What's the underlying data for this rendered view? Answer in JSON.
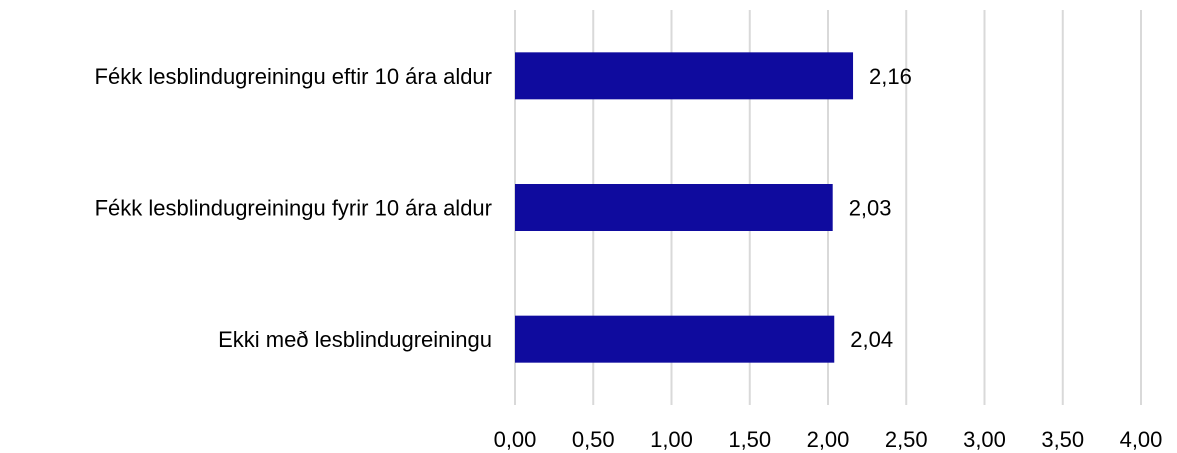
{
  "chart_data": {
    "type": "bar",
    "orientation": "horizontal",
    "categories": [
      "Fékk lesblindugreiningu eftir 10 ára aldur",
      "Fékk lesblindugreiningu fyrir 10 ára aldur",
      "Ekki með lesblindugreiningu"
    ],
    "values": [
      2.16,
      2.03,
      2.04
    ],
    "value_labels": [
      "2,16",
      "2,03",
      "2,04"
    ],
    "title": "",
    "xlabel": "",
    "ylabel": "",
    "xlim": [
      0,
      4
    ],
    "x_ticks": [
      0,
      0.5,
      1,
      1.5,
      2,
      2.5,
      3,
      3.5,
      4
    ],
    "x_tick_labels": [
      "0,00",
      "0,50",
      "1,00",
      "1,50",
      "2,00",
      "2,50",
      "3,00",
      "3,50",
      "4,00"
    ],
    "grid": "vertical",
    "legend": "none",
    "colors": {
      "bar": "#0f0b9e",
      "grid": "#d9d9d9"
    }
  }
}
